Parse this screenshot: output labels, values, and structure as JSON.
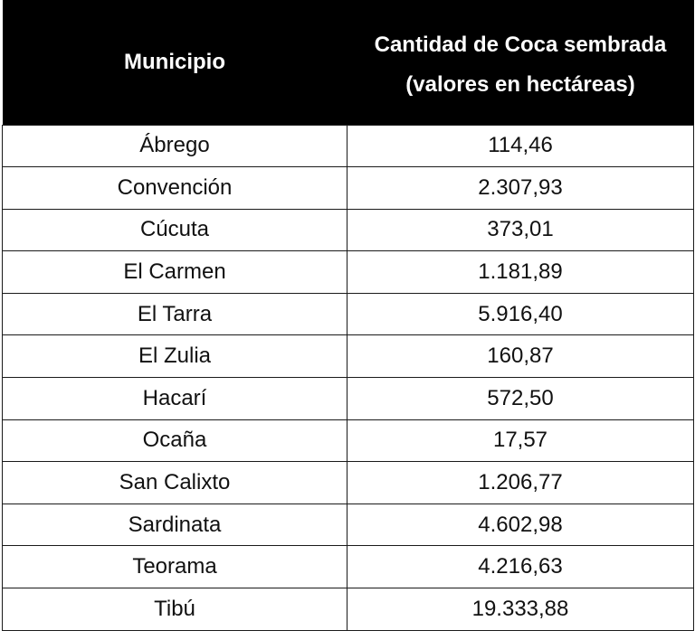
{
  "table": {
    "headers": {
      "municipio": "Municipio",
      "cantidad_line1": "Cantidad de Coca sembrada",
      "cantidad_line2": "(valores en hectáreas)"
    },
    "rows": [
      {
        "municipio": "Ábrego",
        "valor": "114,46"
      },
      {
        "municipio": "Convención",
        "valor": "2.307,93"
      },
      {
        "municipio": "Cúcuta",
        "valor": "373,01"
      },
      {
        "municipio": "El Carmen",
        "valor": "1.181,89"
      },
      {
        "municipio": "El Tarra",
        "valor": "5.916,40"
      },
      {
        "municipio": "El Zulia",
        "valor": "160,87"
      },
      {
        "municipio": "Hacarí",
        "valor": "572,50"
      },
      {
        "municipio": "Ocaña",
        "valor": "17,57"
      },
      {
        "municipio": "San Calixto",
        "valor": "1.206,77"
      },
      {
        "municipio": "Sardinata",
        "valor": "4.602,98"
      },
      {
        "municipio": "Teorama",
        "valor": "4.216,63"
      },
      {
        "municipio": "Tibú",
        "valor": "19.333,88"
      }
    ]
  }
}
